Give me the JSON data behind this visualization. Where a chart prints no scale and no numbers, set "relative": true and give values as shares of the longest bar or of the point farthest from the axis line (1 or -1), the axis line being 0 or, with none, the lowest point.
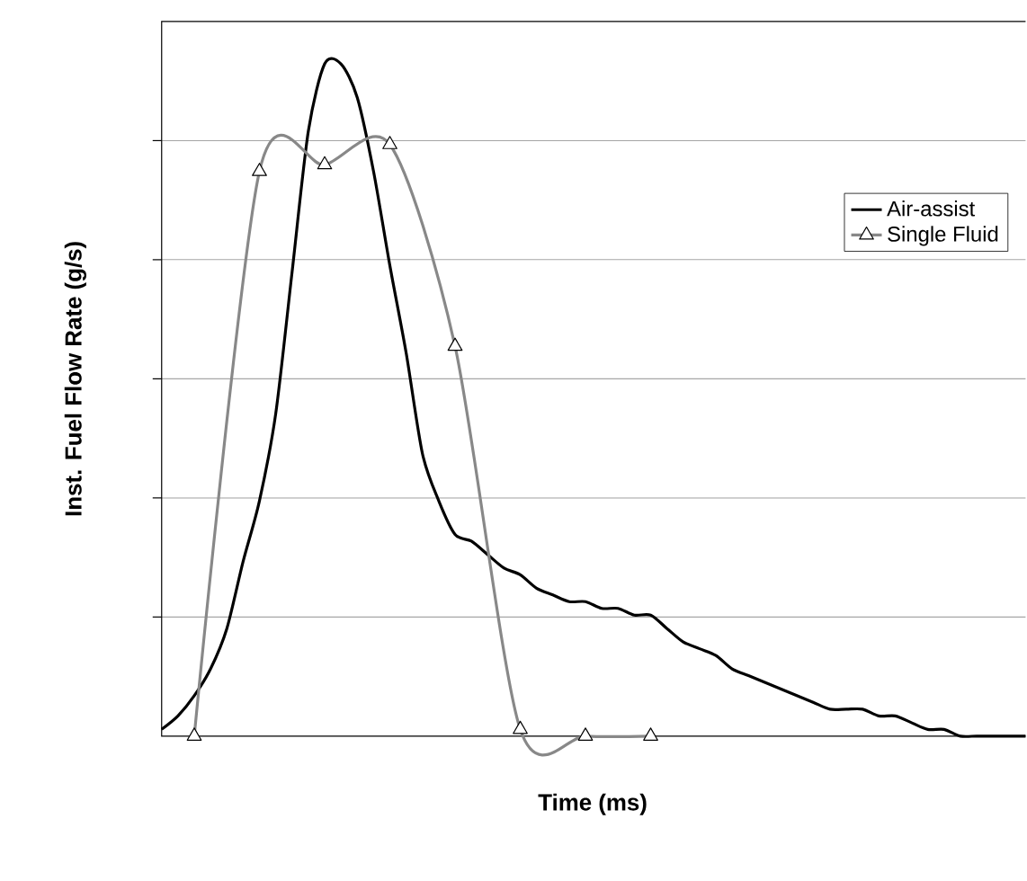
{
  "chart_data": {
    "type": "line",
    "xlabel": "Time (ms)",
    "ylabel": "Inst. Fuel Flow Rate (g/s)",
    "relative": true,
    "grid": "y",
    "legend": "top right",
    "line_style": "solid",
    "categories": [
      null,
      null,
      null,
      null,
      null,
      null,
      null,
      null,
      null,
      null,
      null,
      null,
      null,
      null,
      null,
      null,
      null,
      null,
      null,
      null,
      null,
      null,
      null,
      null,
      null,
      null,
      null,
      null,
      null,
      null,
      null,
      null,
      null,
      null,
      null,
      null,
      null,
      null,
      null,
      null,
      null,
      null,
      null,
      null,
      null,
      null,
      null,
      null,
      null,
      null,
      null,
      null,
      null,
      null
    ],
    "series": [
      {
        "name": "Air-assist",
        "color": "#000000",
        "marker": "none",
        "values": [
          0.01,
          0.03,
          0.06,
          0.1,
          0.16,
          0.26,
          0.35,
          0.48,
          0.69,
          0.9,
          1,
          1,
          0.95,
          0.84,
          0.7,
          0.57,
          0.42,
          0.35,
          0.3,
          0.29,
          0.27,
          0.25,
          0.24,
          0.22,
          0.21,
          0.2,
          0.2,
          0.19,
          0.19,
          0.18,
          0.18,
          0.16,
          0.14,
          0.13,
          0.12,
          0.1,
          0.09,
          0.08,
          0.07,
          0.06,
          0.05,
          0.04,
          0.04,
          0.04,
          0.03,
          0.03,
          0.02,
          0.01,
          0.01,
          0,
          0,
          0,
          0,
          0
        ]
      },
      {
        "name": "Single Fluid",
        "color": "#888888",
        "marker": "triangle",
        "values": [
          null,
          null,
          0,
          null,
          null,
          null,
          0.84,
          null,
          null,
          null,
          0.85,
          null,
          null,
          null,
          0.88,
          null,
          null,
          null,
          0.58,
          null,
          null,
          null,
          0.01,
          null,
          null,
          null,
          0,
          null,
          null,
          null,
          0,
          null,
          null,
          null,
          null,
          null,
          null,
          null,
          null,
          null,
          null,
          null,
          null,
          null,
          null,
          null,
          null,
          null,
          null,
          null,
          null,
          null,
          null,
          null
        ]
      }
    ]
  }
}
